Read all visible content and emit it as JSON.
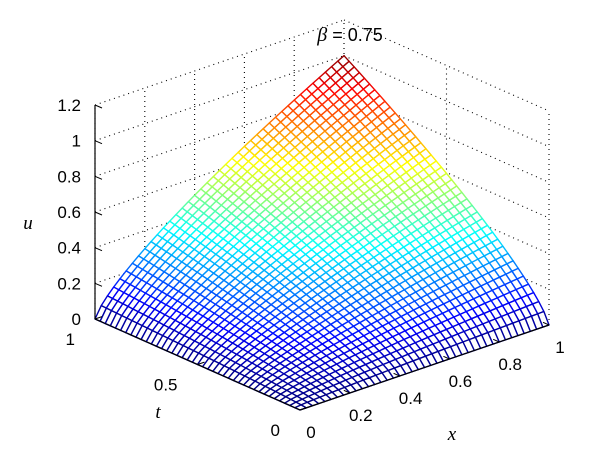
{
  "chart_data": {
    "type": "surface",
    "title": {
      "symbol": "β",
      "text": " = 0.75"
    },
    "xlabel": "x",
    "ylabel": "t",
    "zlabel": "u",
    "xlim": [
      0,
      1
    ],
    "ylim": [
      0,
      1
    ],
    "zlim": [
      0,
      1.2
    ],
    "x_ticks": [
      "0",
      "0.2",
      "0.4",
      "0.6",
      "0.8",
      "1"
    ],
    "y_ticks": [
      "0",
      "0.5",
      "1"
    ],
    "z_ticks": [
      "0",
      "0.2",
      "0.4",
      "0.6",
      "0.8",
      "1",
      "1.2"
    ],
    "grid": true,
    "colormap": "jet",
    "mesh_resolution": 40,
    "surface": {
      "expression": "u = x^beta * t^beta",
      "beta": 0.75,
      "corner_values": [
        {
          "x": 0,
          "t": 0,
          "u": 0
        },
        {
          "x": 1,
          "t": 0,
          "u": 0
        },
        {
          "x": 0,
          "t": 1,
          "u": 0
        },
        {
          "x": 1,
          "t": 1,
          "u": 1
        }
      ]
    }
  }
}
